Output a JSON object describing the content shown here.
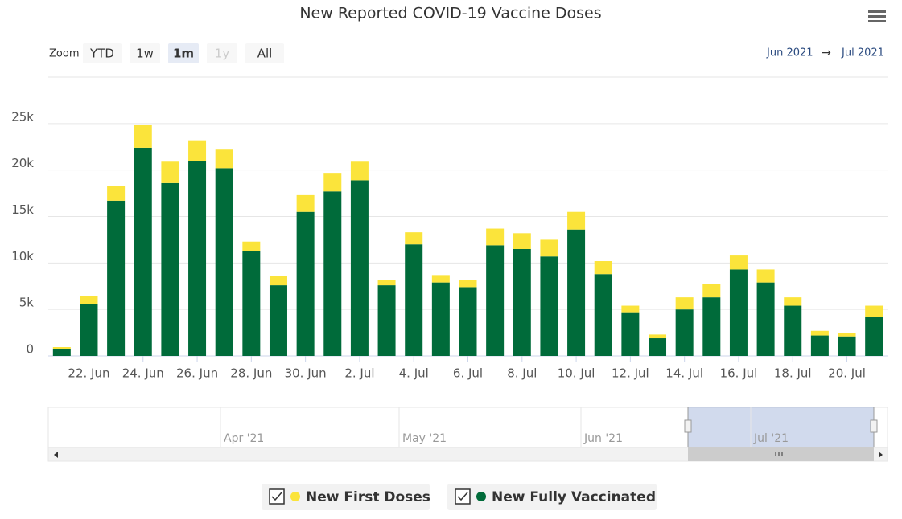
{
  "chart_data": {
    "type": "stacked-bar",
    "title": "New Reported COVID-19 Vaccine Doses",
    "zoom_label": "Zoom",
    "zoom_buttons": [
      "YTD",
      "1w",
      "1m",
      "1y",
      "All"
    ],
    "zoom_selected": "1m",
    "zoom_disabled": "1y",
    "range_from": "Jun 2021",
    "range_arrow": "→",
    "range_to": "Jul 2021",
    "categories": [
      null,
      "22. Jun",
      null,
      "24. Jun",
      null,
      "26. Jun",
      null,
      "28. Jun",
      null,
      "30. Jun",
      null,
      "2. Jul",
      null,
      "4. Jul",
      null,
      "6. Jul",
      null,
      "8. Jul",
      null,
      "10. Jul",
      null,
      "12. Jul",
      null,
      "14. Jul",
      null,
      "16. Jul",
      null,
      "18. Jul",
      null,
      "20. Jul",
      null
    ],
    "series": [
      {
        "name": "New Fully Vaccinated",
        "color": "#006b3a",
        "values": [
          700,
          5600,
          16700,
          22400,
          18600,
          21000,
          20200,
          11300,
          7600,
          15500,
          17700,
          18900,
          7600,
          12000,
          7900,
          7400,
          11900,
          11500,
          10700,
          13600,
          8800,
          4700,
          1900,
          5000,
          6300,
          9300,
          7900,
          5400,
          2200,
          2100,
          4200
        ]
      },
      {
        "name": "New First Doses",
        "color": "#fbe43b",
        "values": [
          250,
          800,
          1600,
          2500,
          2300,
          2200,
          2000,
          1000,
          1000,
          1800,
          2000,
          2000,
          600,
          1300,
          800,
          800,
          1800,
          1700,
          1800,
          1900,
          1400,
          700,
          400,
          1300,
          1400,
          1500,
          1400,
          900,
          500,
          400,
          1200
        ]
      }
    ],
    "legend_order": [
      1,
      0
    ],
    "ylim": [
      0,
      30000
    ],
    "yticks": [
      0,
      {
        "value": 5000,
        "label": "5k"
      },
      {
        "value": 10000,
        "label": "10k"
      },
      {
        "value": 15000,
        "label": "15k"
      },
      {
        "value": 20000,
        "label": "20k"
      },
      {
        "value": 25000,
        "label": "25k"
      }
    ],
    "grid": true,
    "navigator_labels": [
      "Apr '21",
      "May '21",
      "Jun '21",
      "Jul '21"
    ]
  }
}
